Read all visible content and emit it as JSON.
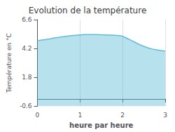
{
  "chart_data": {
    "type": "area",
    "title": "Evolution de la température",
    "xlabel": "heure par heure",
    "ylabel": "Température en °C",
    "x": [
      0.0,
      0.1,
      0.2,
      0.3,
      0.4,
      0.5,
      0.6,
      0.7,
      0.8,
      0.9,
      1.0,
      1.1,
      1.2,
      1.3,
      1.4,
      1.5,
      1.6,
      1.7,
      1.8,
      1.9,
      2.0,
      2.1,
      2.2,
      2.3,
      2.4,
      2.5,
      2.6,
      2.7,
      2.8,
      2.9,
      3.0
    ],
    "values": [
      4.85,
      4.9,
      4.95,
      5.0,
      5.08,
      5.12,
      5.18,
      5.22,
      5.27,
      5.3,
      5.33,
      5.35,
      5.36,
      5.36,
      5.35,
      5.34,
      5.33,
      5.32,
      5.3,
      5.28,
      5.22,
      5.05,
      4.88,
      4.7,
      4.52,
      4.38,
      4.25,
      4.15,
      4.08,
      4.03,
      3.98
    ],
    "color": "#60bcd8",
    "xlim": [
      0,
      3
    ],
    "ylim": [
      -0.6,
      6.6
    ],
    "xticks": [
      0,
      1,
      2,
      3
    ],
    "yticks": [
      -0.6,
      1.8,
      4.2,
      6.6
    ],
    "grid": "x"
  }
}
